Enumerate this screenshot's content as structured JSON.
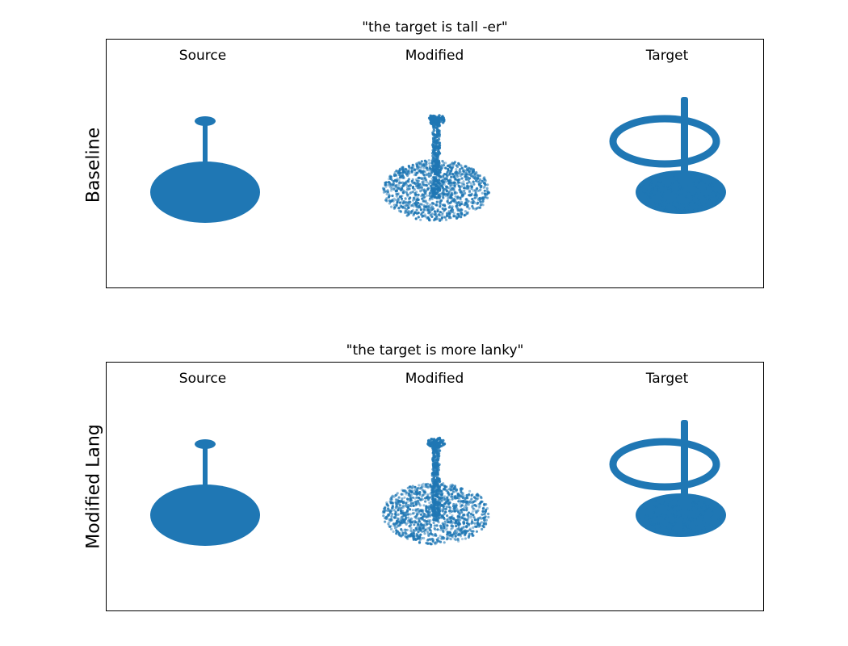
{
  "colors": {
    "points": "#1f77b4",
    "frame": "#000000"
  },
  "panels": [
    {
      "title": "\"the target is tall -er\"",
      "row_label": "Baseline",
      "columns": [
        "Source",
        "Modified",
        "Target"
      ]
    },
    {
      "title": "\"the target is more lanky\"",
      "row_label": "Modified Lang",
      "columns": [
        "Source",
        "Modified",
        "Target"
      ]
    }
  ],
  "point_clouds": [
    "source-table-cloud",
    "modified-table-cloud",
    "target-ring-table-cloud"
  ]
}
